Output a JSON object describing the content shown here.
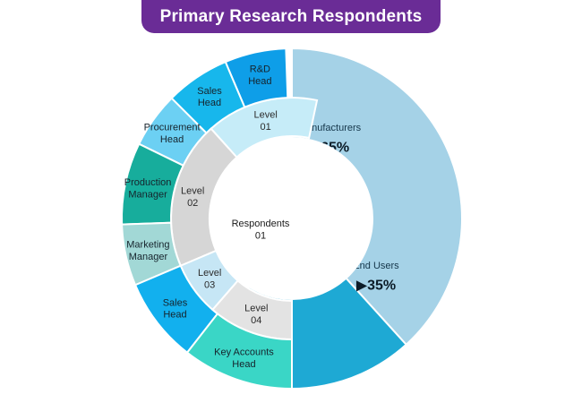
{
  "title": "Primary Research Respondents",
  "colors": {
    "banner": "#6a2c96",
    "manufacturers": "#a5d2e7",
    "end_users": "#1ea9d4",
    "center": "#ffffff"
  },
  "chart_data": {
    "type": "pie",
    "title": "Primary Research Respondents",
    "center_label": [
      "Respondents",
      "01"
    ],
    "slices": [
      {
        "name": "Manufacturers",
        "value": 65,
        "value_label": "▶65%",
        "color": "#a5d2e7"
      },
      {
        "name": "End Users",
        "value": 35,
        "value_label": "▶35%",
        "color": "#1ea9d4"
      }
    ],
    "levels": [
      {
        "name": "Level 01",
        "lines": [
          "Level",
          "01"
        ],
        "color": "#c6ecf8",
        "roles": [
          {
            "name": "R&D Head",
            "lines": [
              "R&D",
              "Head"
            ],
            "color": "#0e9ee8"
          },
          {
            "name": "Sales Head",
            "lines": [
              "Sales",
              "Head"
            ],
            "color": "#17b7ec"
          },
          {
            "name": "Procurement Head",
            "lines": [
              "Procurement",
              "Head"
            ],
            "color": "#6cd0f3"
          }
        ]
      },
      {
        "name": "Level 02",
        "lines": [
          "Level",
          "02"
        ],
        "color": "#d6d6d6",
        "roles": [
          {
            "name": "Production Manager",
            "lines": [
              "Production",
              "Manager"
            ],
            "color": "#17ad9c"
          },
          {
            "name": "Marketing Manager",
            "lines": [
              "Marketing",
              "Manager"
            ],
            "color": "#a2d8d6"
          }
        ]
      },
      {
        "name": "Level 03",
        "lines": [
          "Level",
          "03"
        ],
        "color": "#c6e6f5",
        "roles": [
          {
            "name": "Sales Head",
            "lines": [
              "Sales",
              "Head"
            ],
            "color": "#12b0ee"
          }
        ]
      },
      {
        "name": "Level 04",
        "lines": [
          "Level",
          "04"
        ],
        "color": "#e3e3e3",
        "roles": [
          {
            "name": "Key Accounts Head",
            "lines": [
              "Key Accounts",
              "Head"
            ],
            "color": "#3ad6c6"
          }
        ]
      }
    ]
  }
}
